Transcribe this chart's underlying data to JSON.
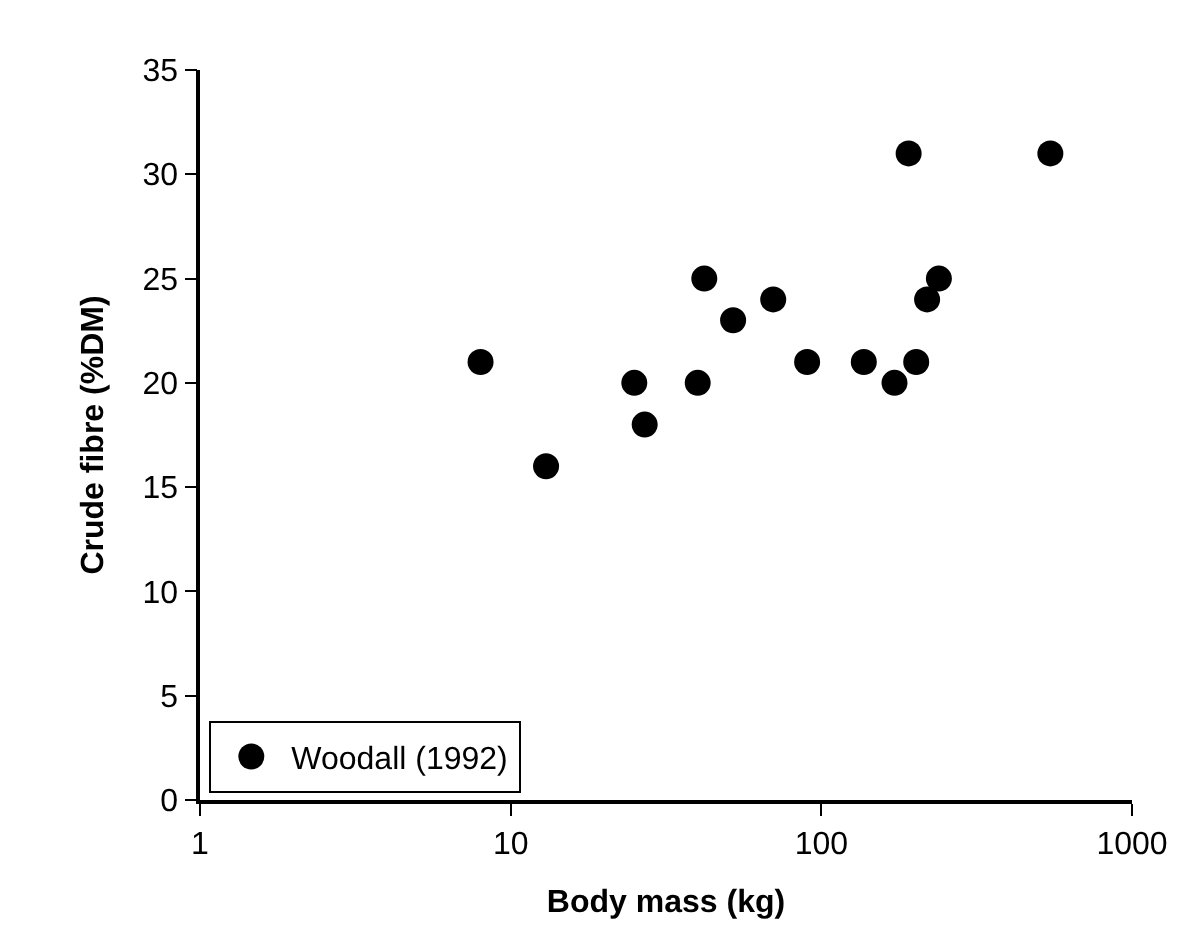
{
  "chart_data": {
    "type": "scatter",
    "xlabel": "Body mass (kg)",
    "ylabel": "Crude fibre (%DM)",
    "log": "x",
    "xlim": [
      1,
      1000
    ],
    "xticks": [
      1,
      10,
      100,
      1000
    ],
    "ylim": [
      0,
      35
    ],
    "yticks": [
      0,
      5,
      10,
      15,
      20,
      25,
      30,
      35
    ],
    "legend": "bottom left",
    "marker": "circle",
    "series": [
      {
        "name": "Woodall (1992)",
        "color": "#000000",
        "x": [
          8,
          13,
          25,
          27,
          40,
          42,
          52,
          70,
          90,
          137,
          172,
          191,
          202,
          219,
          239,
          546
        ],
        "values": [
          21,
          16,
          20,
          18,
          20,
          25,
          23,
          24,
          21,
          21,
          20,
          31,
          21,
          24,
          25,
          31
        ]
      }
    ]
  }
}
